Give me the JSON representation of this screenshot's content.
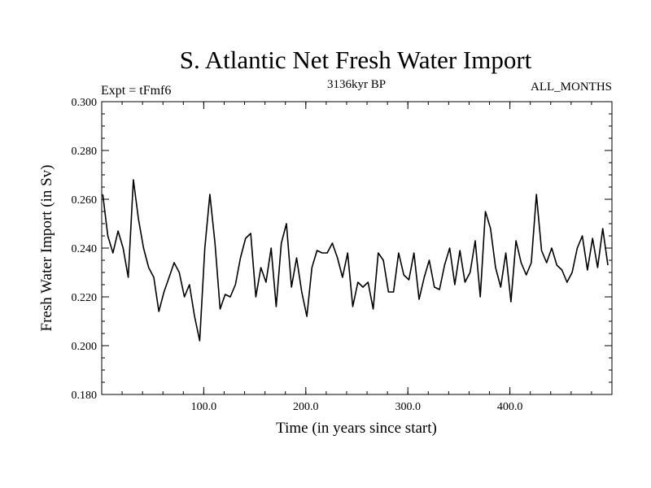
{
  "chart_data": {
    "type": "line",
    "title": "S. Atlantic Net Fresh Water Import",
    "subtitle_left": "Expt = tFmf6",
    "subtitle_center": "3136kyr BP",
    "subtitle_right": "ALL_MONTHS",
    "xlabel": "Time (in years since start)",
    "ylabel": "Fresh Water Import (in Sv)",
    "xlim": [
      0,
      500
    ],
    "ylim": [
      0.18,
      0.3
    ],
    "x_ticks": [
      100,
      200,
      300,
      400
    ],
    "x_tick_labels": [
      "100.0",
      "200.0",
      "300.0",
      "400.0"
    ],
    "y_ticks": [
      0.18,
      0.2,
      0.22,
      0.24,
      0.26,
      0.28,
      0.3
    ],
    "y_tick_labels": [
      "0.180",
      "0.200",
      "0.220",
      "0.240",
      "0.260",
      "0.280",
      "0.300"
    ],
    "series": [
      {
        "name": "Net Fresh Water Import",
        "color": "#000000",
        "x_start": 1,
        "x_step": 5,
        "values": [
          0.262,
          0.245,
          0.238,
          0.247,
          0.24,
          0.228,
          0.268,
          0.252,
          0.24,
          0.232,
          0.228,
          0.214,
          0.222,
          0.228,
          0.234,
          0.23,
          0.22,
          0.225,
          0.212,
          0.202,
          0.24,
          0.262,
          0.242,
          0.215,
          0.221,
          0.22,
          0.225,
          0.236,
          0.244,
          0.246,
          0.22,
          0.232,
          0.226,
          0.24,
          0.216,
          0.242,
          0.25,
          0.224,
          0.236,
          0.222,
          0.212,
          0.232,
          0.239,
          0.238,
          0.238,
          0.242,
          0.236,
          0.228,
          0.238,
          0.216,
          0.226,
          0.224,
          0.226,
          0.215,
          0.238,
          0.235,
          0.222,
          0.222,
          0.238,
          0.229,
          0.227,
          0.238,
          0.219,
          0.228,
          0.235,
          0.224,
          0.223,
          0.233,
          0.24,
          0.225,
          0.239,
          0.226,
          0.23,
          0.243,
          0.22,
          0.255,
          0.248,
          0.232,
          0.224,
          0.238,
          0.218,
          0.243,
          0.234,
          0.229,
          0.234,
          0.262,
          0.239,
          0.234,
          0.24,
          0.233,
          0.231,
          0.226,
          0.23,
          0.24,
          0.245,
          0.231,
          0.244,
          0.232,
          0.248,
          0.233
        ]
      }
    ]
  }
}
